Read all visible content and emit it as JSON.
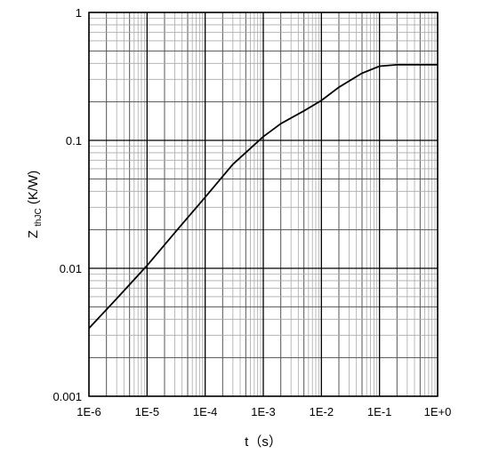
{
  "chart_data": {
    "type": "line",
    "x_scale": "log",
    "y_scale": "log",
    "xlim": [
      1e-06,
      1
    ],
    "ylim": [
      0.001,
      1
    ],
    "xlabel": "t（s）",
    "ylabel_main": "Z",
    "ylabel_sub": "thJC",
    "ylabel_unit": "(K/W)",
    "x_ticks": [
      {
        "value": 1e-06,
        "label": "1E-6"
      },
      {
        "value": 1e-05,
        "label": "1E-5"
      },
      {
        "value": 0.0001,
        "label": "1E-4"
      },
      {
        "value": 0.001,
        "label": "1E-3"
      },
      {
        "value": 0.01,
        "label": "1E-2"
      },
      {
        "value": 0.1,
        "label": "1E-1"
      },
      {
        "value": 1,
        "label": "1E+0"
      }
    ],
    "y_ticks": [
      {
        "value": 1,
        "label": "1"
      },
      {
        "value": 0.1,
        "label": "0.1"
      },
      {
        "value": 0.01,
        "label": "0.01"
      },
      {
        "value": 0.001,
        "label": "0.001"
      }
    ],
    "grid": true,
    "line_color": "#000000",
    "series": [
      {
        "x": [
          1e-06,
          3e-06,
          1e-05,
          3e-05,
          0.0001,
          0.0003,
          0.001,
          0.002,
          0.005,
          0.01,
          0.02,
          0.05,
          0.1,
          0.2,
          0.5,
          1
        ],
        "y": [
          0.0034,
          0.0058,
          0.0105,
          0.019,
          0.036,
          0.065,
          0.107,
          0.135,
          0.17,
          0.205,
          0.26,
          0.335,
          0.38,
          0.39,
          0.39,
          0.39
        ]
      }
    ]
  }
}
